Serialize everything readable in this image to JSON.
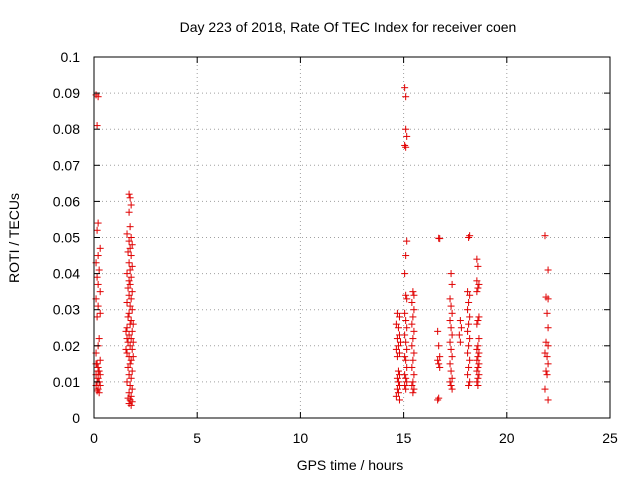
{
  "chart_data": {
    "type": "scatter",
    "title": "Day 223 of 2018, Rate Of TEC Index for receiver coen",
    "xlabel": "GPS time / hours",
    "ylabel": "ROTI / TECUs",
    "xlim": [
      0,
      25
    ],
    "ylim": [
      0,
      0.1
    ],
    "xticks": [
      0,
      5,
      10,
      15,
      20,
      25
    ],
    "xtick_labels": [
      "0",
      "5",
      "10",
      "15",
      "20",
      "25"
    ],
    "yticks": [
      0,
      0.01,
      0.02,
      0.03,
      0.04,
      0.05,
      0.06,
      0.07,
      0.08,
      0.09,
      0.1
    ],
    "ytick_labels": [
      "0",
      "0.01",
      "0.02",
      "0.03",
      "0.04",
      "0.05",
      "0.06",
      "0.07",
      "0.08",
      "0.09",
      "0.1"
    ],
    "grid": true,
    "marker": "+",
    "color": "#e00000",
    "series": [
      {
        "name": "ROTI",
        "points": [
          [
            0.1,
            0.0895
          ],
          [
            0.2,
            0.089
          ],
          [
            0.15,
            0.081
          ],
          [
            0.2,
            0.054
          ],
          [
            0.15,
            0.052
          ],
          [
            0.3,
            0.047
          ],
          [
            0.2,
            0.045
          ],
          [
            0.1,
            0.043
          ],
          [
            0.25,
            0.041
          ],
          [
            0.15,
            0.039
          ],
          [
            0.2,
            0.037
          ],
          [
            0.3,
            0.035
          ],
          [
            0.1,
            0.033
          ],
          [
            0.2,
            0.031
          ],
          [
            0.3,
            0.029
          ],
          [
            0.15,
            0.028
          ],
          [
            0.25,
            0.022
          ],
          [
            0.2,
            0.02
          ],
          [
            0.1,
            0.018
          ],
          [
            0.3,
            0.016
          ],
          [
            0.15,
            0.015
          ],
          [
            0.2,
            0.014
          ],
          [
            0.25,
            0.013
          ],
          [
            0.1,
            0.012
          ],
          [
            0.3,
            0.012
          ],
          [
            0.2,
            0.011
          ],
          [
            0.15,
            0.01
          ],
          [
            0.25,
            0.01
          ],
          [
            0.1,
            0.009
          ],
          [
            0.3,
            0.009
          ],
          [
            0.2,
            0.008
          ],
          [
            0.15,
            0.0075
          ],
          [
            0.25,
            0.007
          ],
          [
            0.2,
            0.013
          ],
          [
            0.1,
            0.015
          ],
          [
            1.7,
            0.062
          ],
          [
            1.75,
            0.061
          ],
          [
            1.8,
            0.059
          ],
          [
            1.7,
            0.057
          ],
          [
            1.75,
            0.053
          ],
          [
            1.6,
            0.051
          ],
          [
            1.8,
            0.05
          ],
          [
            1.7,
            0.049
          ],
          [
            1.85,
            0.048
          ],
          [
            1.75,
            0.047
          ],
          [
            1.65,
            0.046
          ],
          [
            1.8,
            0.045
          ],
          [
            1.7,
            0.043
          ],
          [
            1.85,
            0.042
          ],
          [
            1.75,
            0.041
          ],
          [
            1.6,
            0.04
          ],
          [
            1.8,
            0.039
          ],
          [
            1.7,
            0.038
          ],
          [
            1.75,
            0.037
          ],
          [
            1.65,
            0.036
          ],
          [
            1.85,
            0.035
          ],
          [
            1.7,
            0.034
          ],
          [
            1.8,
            0.033
          ],
          [
            1.6,
            0.032
          ],
          [
            1.75,
            0.031
          ],
          [
            1.85,
            0.03
          ],
          [
            1.7,
            0.029
          ],
          [
            1.65,
            0.028
          ],
          [
            1.8,
            0.027
          ],
          [
            1.75,
            0.026
          ],
          [
            1.6,
            0.025
          ],
          [
            1.85,
            0.024
          ],
          [
            1.7,
            0.023
          ],
          [
            1.8,
            0.022
          ],
          [
            1.65,
            0.021
          ],
          [
            1.75,
            0.02
          ],
          [
            1.85,
            0.019
          ],
          [
            1.6,
            0.018
          ],
          [
            1.7,
            0.017
          ],
          [
            1.8,
            0.016
          ],
          [
            1.75,
            0.015
          ],
          [
            1.65,
            0.014
          ],
          [
            1.85,
            0.013
          ],
          [
            1.7,
            0.012
          ],
          [
            1.8,
            0.011
          ],
          [
            1.6,
            0.01
          ],
          [
            1.75,
            0.009
          ],
          [
            1.85,
            0.008
          ],
          [
            1.7,
            0.007
          ],
          [
            1.8,
            0.006
          ],
          [
            1.65,
            0.0055
          ],
          [
            1.75,
            0.005
          ],
          [
            1.85,
            0.0045
          ],
          [
            1.7,
            0.004
          ],
          [
            1.8,
            0.0035
          ],
          [
            1.6,
            0.022
          ],
          [
            1.9,
            0.021
          ],
          [
            1.55,
            0.024
          ],
          [
            1.9,
            0.026
          ],
          [
            1.55,
            0.019
          ],
          [
            1.9,
            0.017
          ],
          [
            14.7,
            0.029
          ],
          [
            14.8,
            0.028
          ],
          [
            14.65,
            0.026
          ],
          [
            14.75,
            0.025
          ],
          [
            14.8,
            0.023
          ],
          [
            14.7,
            0.022
          ],
          [
            14.85,
            0.021
          ],
          [
            14.75,
            0.02
          ],
          [
            14.65,
            0.019
          ],
          [
            14.8,
            0.018
          ],
          [
            14.7,
            0.017
          ],
          [
            14.75,
            0.013
          ],
          [
            14.8,
            0.012
          ],
          [
            14.7,
            0.011
          ],
          [
            14.75,
            0.01
          ],
          [
            14.8,
            0.009
          ],
          [
            14.7,
            0.008
          ],
          [
            14.75,
            0.007
          ],
          [
            14.65,
            0.006
          ],
          [
            14.8,
            0.005
          ],
          [
            15.05,
            0.0915
          ],
          [
            15.1,
            0.089
          ],
          [
            15.1,
            0.08
          ],
          [
            15.15,
            0.078
          ],
          [
            15.05,
            0.0755
          ],
          [
            15.1,
            0.075
          ],
          [
            15.15,
            0.049
          ],
          [
            15.1,
            0.045
          ],
          [
            15.05,
            0.04
          ],
          [
            15.1,
            0.034
          ],
          [
            15.15,
            0.033
          ],
          [
            15.05,
            0.029
          ],
          [
            15.1,
            0.027
          ],
          [
            15.15,
            0.025
          ],
          [
            15.05,
            0.023
          ],
          [
            15.1,
            0.021
          ],
          [
            15.15,
            0.019
          ],
          [
            15.05,
            0.017
          ],
          [
            15.1,
            0.016
          ],
          [
            15.15,
            0.014
          ],
          [
            15.05,
            0.012
          ],
          [
            15.1,
            0.011
          ],
          [
            15.15,
            0.01
          ],
          [
            15.05,
            0.009
          ],
          [
            15.1,
            0.008
          ],
          [
            15.45,
            0.035
          ],
          [
            15.5,
            0.034
          ],
          [
            15.4,
            0.032
          ],
          [
            15.5,
            0.03
          ],
          [
            15.45,
            0.028
          ],
          [
            15.4,
            0.026
          ],
          [
            15.5,
            0.024
          ],
          [
            15.45,
            0.022
          ],
          [
            15.4,
            0.02
          ],
          [
            15.5,
            0.018
          ],
          [
            15.45,
            0.016
          ],
          [
            15.4,
            0.014
          ],
          [
            15.5,
            0.012
          ],
          [
            15.45,
            0.01
          ],
          [
            15.4,
            0.009
          ],
          [
            15.5,
            0.008
          ],
          [
            15.45,
            0.007
          ],
          [
            16.7,
            0.0498
          ],
          [
            16.75,
            0.0497
          ],
          [
            16.65,
            0.024
          ],
          [
            16.7,
            0.02
          ],
          [
            16.75,
            0.017
          ],
          [
            16.65,
            0.016
          ],
          [
            16.7,
            0.015
          ],
          [
            16.75,
            0.014
          ],
          [
            16.7,
            0.0055
          ],
          [
            16.65,
            0.005
          ],
          [
            17.3,
            0.04
          ],
          [
            17.35,
            0.037
          ],
          [
            17.25,
            0.033
          ],
          [
            17.3,
            0.031
          ],
          [
            17.35,
            0.029
          ],
          [
            17.25,
            0.027
          ],
          [
            17.3,
            0.025
          ],
          [
            17.35,
            0.023
          ],
          [
            17.25,
            0.021
          ],
          [
            17.3,
            0.019
          ],
          [
            17.35,
            0.017
          ],
          [
            17.25,
            0.015
          ],
          [
            17.3,
            0.013
          ],
          [
            17.35,
            0.011
          ],
          [
            17.25,
            0.01
          ],
          [
            17.3,
            0.009
          ],
          [
            17.35,
            0.008
          ],
          [
            17.75,
            0.027
          ],
          [
            17.8,
            0.025
          ],
          [
            17.7,
            0.023
          ],
          [
            17.75,
            0.021
          ],
          [
            18.15,
            0.05
          ],
          [
            18.2,
            0.0505
          ],
          [
            18.1,
            0.035
          ],
          [
            18.2,
            0.034
          ],
          [
            18.15,
            0.032
          ],
          [
            18.1,
            0.03
          ],
          [
            18.2,
            0.028
          ],
          [
            18.15,
            0.026
          ],
          [
            18.1,
            0.024
          ],
          [
            18.2,
            0.022
          ],
          [
            18.15,
            0.02
          ],
          [
            18.1,
            0.018
          ],
          [
            18.2,
            0.016
          ],
          [
            18.15,
            0.014
          ],
          [
            18.1,
            0.012
          ],
          [
            18.2,
            0.01
          ],
          [
            18.15,
            0.009
          ],
          [
            18.55,
            0.044
          ],
          [
            18.6,
            0.042
          ],
          [
            18.55,
            0.038
          ],
          [
            18.65,
            0.037
          ],
          [
            18.6,
            0.036
          ],
          [
            18.55,
            0.035
          ],
          [
            18.65,
            0.028
          ],
          [
            18.6,
            0.027
          ],
          [
            18.55,
            0.026
          ],
          [
            18.65,
            0.022
          ],
          [
            18.6,
            0.02
          ],
          [
            18.55,
            0.019
          ],
          [
            18.65,
            0.018
          ],
          [
            18.6,
            0.017
          ],
          [
            18.55,
            0.016
          ],
          [
            18.65,
            0.015
          ],
          [
            18.6,
            0.014
          ],
          [
            18.55,
            0.013
          ],
          [
            18.65,
            0.012
          ],
          [
            18.6,
            0.011
          ],
          [
            18.55,
            0.01
          ],
          [
            18.6,
            0.009
          ],
          [
            21.85,
            0.0505
          ],
          [
            22.0,
            0.041
          ],
          [
            21.9,
            0.0335
          ],
          [
            22.0,
            0.033
          ],
          [
            21.95,
            0.029
          ],
          [
            22.0,
            0.025
          ],
          [
            21.9,
            0.021
          ],
          [
            22.0,
            0.02
          ],
          [
            21.85,
            0.018
          ],
          [
            21.95,
            0.017
          ],
          [
            22.0,
            0.015
          ],
          [
            21.9,
            0.013
          ],
          [
            21.95,
            0.012
          ],
          [
            21.85,
            0.008
          ],
          [
            22.0,
            0.005
          ]
        ]
      }
    ]
  }
}
